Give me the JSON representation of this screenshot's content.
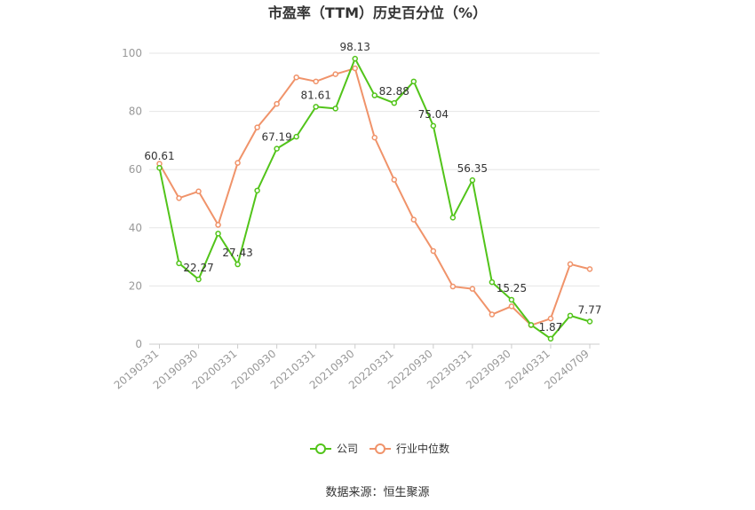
{
  "chart_data": {
    "type": "line",
    "title": "市盈率（TTM）历史百分位（%）",
    "source": "数据来源：恒生聚源",
    "ylim": [
      0,
      100
    ],
    "yticks": [
      0,
      20,
      40,
      60,
      80,
      100
    ],
    "grid": true,
    "legend_position": "bottom",
    "x": [
      "20190331",
      "20190630",
      "20190930",
      "20191231",
      "20200331",
      "20200630",
      "20200930",
      "20201231",
      "20210331",
      "20210630",
      "20210930",
      "20211231",
      "20220331",
      "20220630",
      "20220930",
      "20221231",
      "20230331",
      "20230630",
      "20230930",
      "20231231",
      "20240331",
      "20240630",
      "20240709"
    ],
    "x_tick_labels": [
      "20190331",
      "20190930",
      "20200331",
      "20200930",
      "20210331",
      "20210930",
      "20220331",
      "20220930",
      "20230331",
      "20230930",
      "20240331",
      "20240709"
    ],
    "x_tick_indices": [
      0,
      2,
      4,
      6,
      8,
      10,
      12,
      14,
      16,
      18,
      20,
      22
    ],
    "series": [
      {
        "name": "公司",
        "color": "#52c41a",
        "values": [
          60.61,
          27.8,
          22.27,
          38.0,
          27.43,
          52.8,
          67.19,
          71.3,
          81.61,
          81.0,
          98.13,
          85.5,
          82.88,
          90.3,
          75.04,
          43.5,
          56.35,
          21.3,
          15.25,
          6.6,
          1.87,
          9.8,
          7.77
        ],
        "labels": {
          "0": "60.61",
          "2": "22.27",
          "4": "27.43",
          "6": "67.19",
          "8": "81.61",
          "10": "98.13",
          "12": "82.88",
          "14": "75.04",
          "16": "56.35",
          "18": "15.25",
          "20": "1.87",
          "22": "7.77"
        }
      },
      {
        "name": "行业中位数",
        "color": "#f0936a",
        "values": [
          62.0,
          50.2,
          52.5,
          41.0,
          62.3,
          74.5,
          82.6,
          91.7,
          90.3,
          92.8,
          94.8,
          71.0,
          56.5,
          42.8,
          32.0,
          19.8,
          19.0,
          10.2,
          13.0,
          6.5,
          8.8,
          27.5,
          25.8
        ]
      }
    ]
  }
}
